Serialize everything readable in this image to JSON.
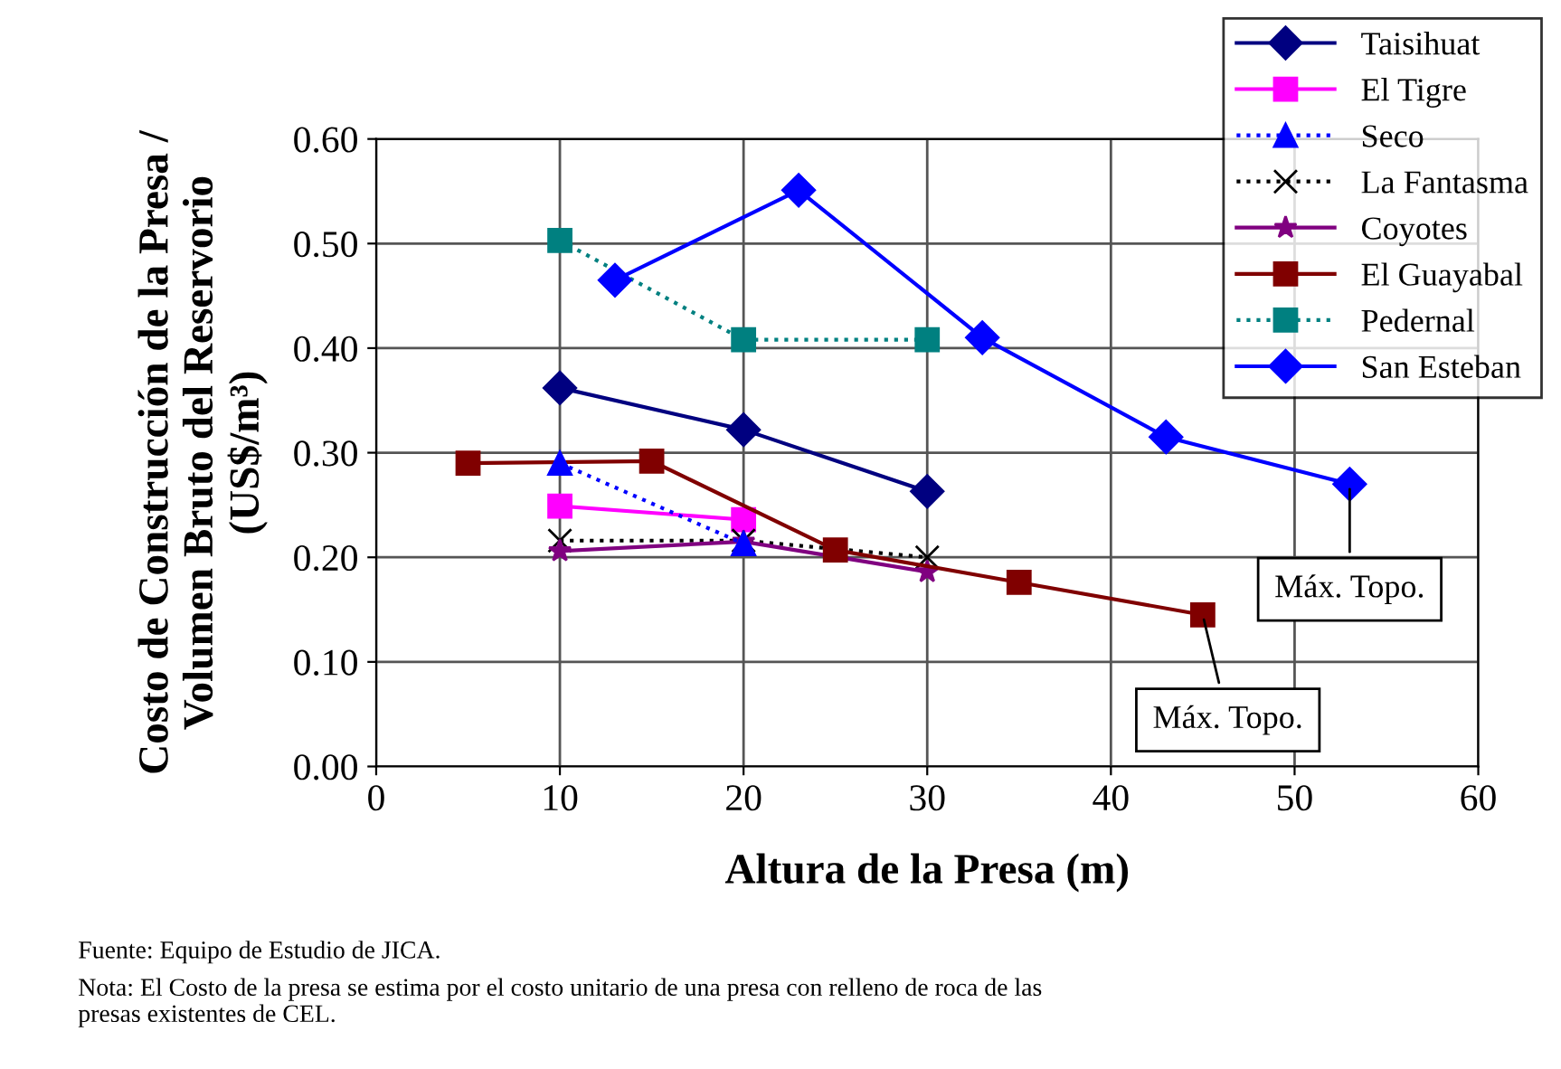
{
  "chart_data": {
    "type": "line",
    "xlabel": "Altura de la Presa (m)",
    "ylabel": "Costo de Construcción de la Presa /\nVolumen Bruto del Reservorio\n(US$/m³)",
    "xlim": [
      0,
      60
    ],
    "xticks": [
      0,
      10,
      20,
      30,
      40,
      50,
      60
    ],
    "ylim": [
      0,
      0.6
    ],
    "yticks": [
      {
        "value": 0,
        "label": "0.00"
      },
      {
        "value": 0.1,
        "label": "0.10"
      },
      {
        "value": 0.2,
        "label": "0.20"
      },
      {
        "value": 0.3,
        "label": "0.30"
      },
      {
        "value": 0.4,
        "label": "0.40"
      },
      {
        "value": 0.5,
        "label": "0.50"
      },
      {
        "value": 0.6,
        "label": "0.60"
      }
    ],
    "grid": true,
    "legend": "top right",
    "series": [
      {
        "name": "Taisihuat",
        "color": "#000080",
        "marker": "diamond",
        "line_style": "solid",
        "x": [
          10,
          20,
          30
        ],
        "values": [
          0.362,
          0.322,
          0.263
        ]
      },
      {
        "name": "El Tigre",
        "color": "#ff00ff",
        "marker": "square",
        "line_style": "solid",
        "x": [
          10,
          20
        ],
        "values": [
          0.249,
          0.236
        ]
      },
      {
        "name": "Seco",
        "color": "#0000ff",
        "marker": "triangle",
        "line_style": "dotted",
        "x": [
          10,
          20
        ],
        "values": [
          0.29,
          0.213
        ]
      },
      {
        "name": "La Fantasma",
        "color": "#000000",
        "marker": "cross",
        "line_style": "dotted",
        "x": [
          10,
          20,
          30
        ],
        "values": [
          0.216,
          0.216,
          0.2
        ]
      },
      {
        "name": "Coyotes",
        "color": "#800080",
        "marker": "star",
        "line_style": "solid",
        "x": [
          10,
          20,
          30
        ],
        "values": [
          0.206,
          0.215,
          0.186
        ]
      },
      {
        "name": "El Guayabal",
        "color": "#800000",
        "marker": "square",
        "line_style": "solid",
        "x": [
          5,
          15,
          25,
          35,
          45
        ],
        "values": [
          0.29,
          0.292,
          0.207,
          0.176,
          0.145
        ]
      },
      {
        "name": "Pedernal",
        "color": "#008080",
        "marker": "square",
        "line_style": "dotted",
        "x": [
          10,
          20,
          30
        ],
        "values": [
          0.503,
          0.408,
          0.408
        ]
      },
      {
        "name": "San Esteban",
        "color": "#0000ff",
        "marker": "diamond",
        "line_style": "solid",
        "x": [
          13,
          23,
          33,
          43,
          53
        ],
        "values": [
          0.465,
          0.551,
          0.41,
          0.315,
          0.27
        ]
      }
    ],
    "annotations": [
      {
        "text": "Máx. Topo.",
        "x": 53,
        "y": 0.27
      },
      {
        "text": "Máx. Topo.",
        "x": 45,
        "y": 0.145
      },
      "Fuente: Equipo de Estudio de JICA.",
      "Nota: El Costo de la presa se estima por el costo unitario de una presa con relleno de roca de las\npresas existentes de CEL."
    ]
  }
}
